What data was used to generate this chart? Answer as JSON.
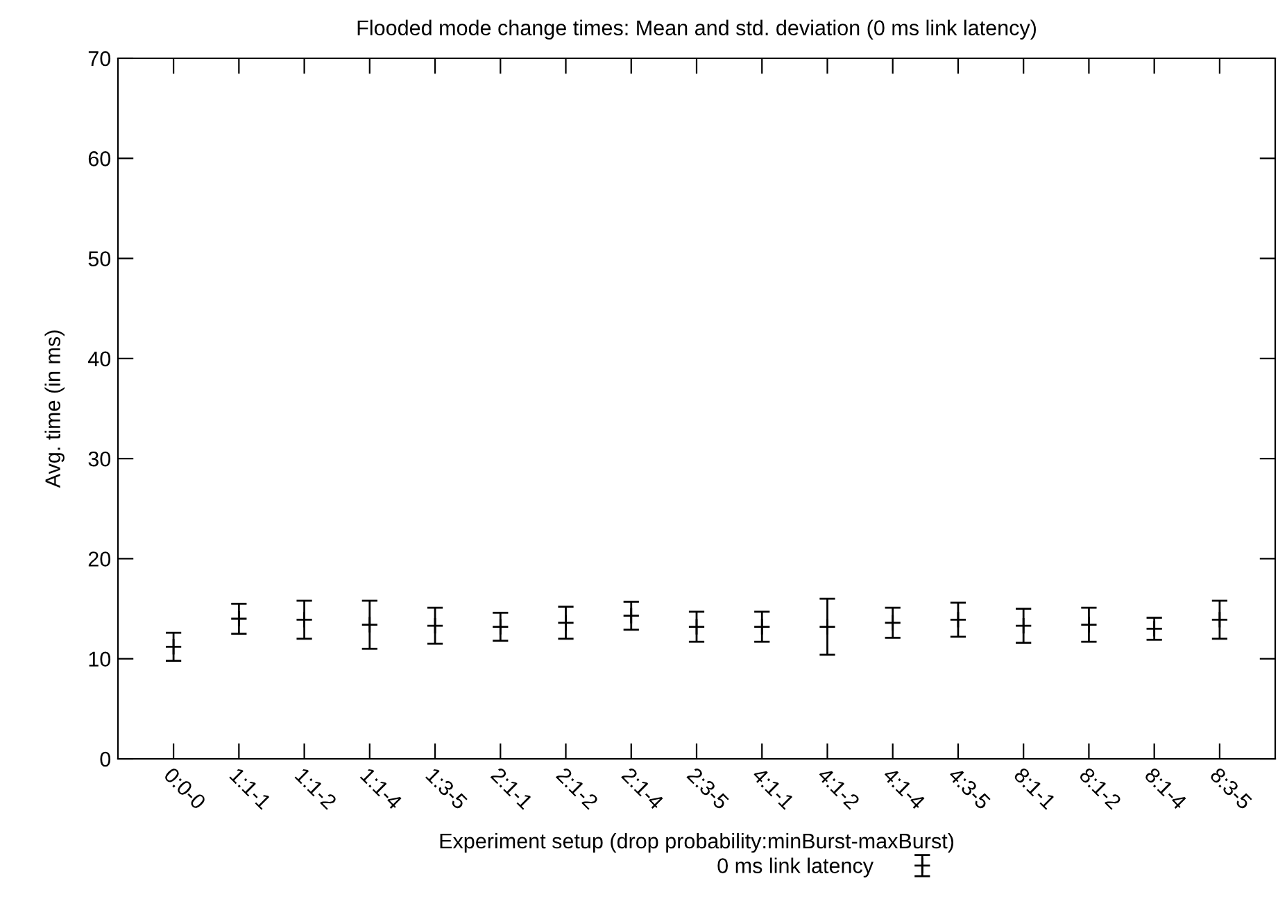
{
  "chart_data": {
    "type": "scatter",
    "title": "Flooded mode change times: Mean and std. deviation (0 ms link latency)",
    "xlabel": "Experiment setup (drop probability:minBurst-maxBurst)",
    "ylabel": "Avg. time (in ms)",
    "categories": [
      "0:0-0",
      "1:1-1",
      "1:1-2",
      "1:1-4",
      "1:3-5",
      "2:1-1",
      "2:1-2",
      "2:1-4",
      "2:3-5",
      "4:1-1",
      "4:1-2",
      "4:1-4",
      "4:3-5",
      "8:1-1",
      "8:1-2",
      "8:1-4",
      "8:3-5"
    ],
    "series": [
      {
        "name": "0 ms link latency",
        "color": "#000000",
        "values": [
          11.2,
          14.0,
          13.9,
          13.4,
          13.3,
          13.2,
          13.6,
          14.3,
          13.2,
          13.2,
          13.2,
          13.6,
          13.9,
          13.3,
          13.4,
          13.0,
          13.9
        ],
        "errors": [
          1.4,
          1.5,
          1.9,
          2.4,
          1.8,
          1.4,
          1.6,
          1.4,
          1.5,
          1.5,
          2.8,
          1.5,
          1.7,
          1.7,
          1.7,
          1.1,
          1.9
        ]
      }
    ],
    "ylim": [
      0,
      70
    ],
    "yticks": [
      0,
      10,
      20,
      30,
      40,
      50,
      60,
      70
    ],
    "marker": "cross",
    "grid": false,
    "legend": "bottom"
  }
}
